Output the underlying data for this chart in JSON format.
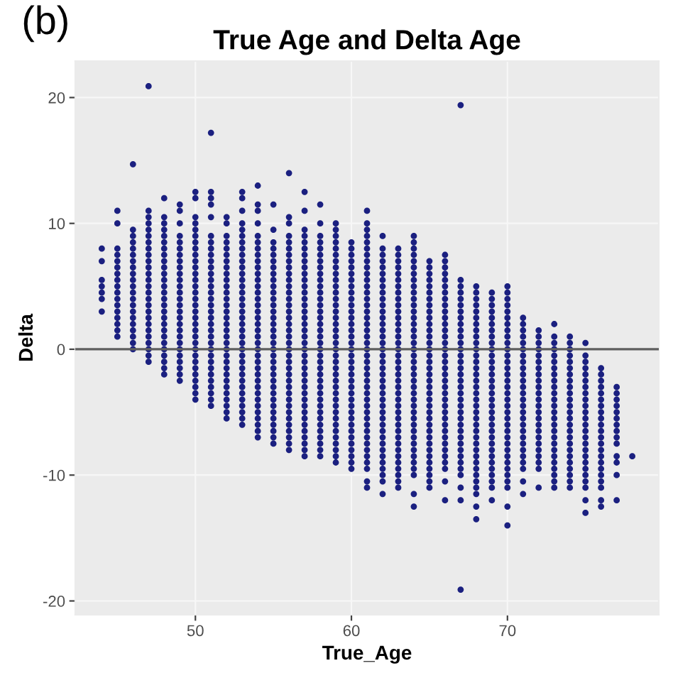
{
  "chart_data": {
    "type": "scatter",
    "title": "True Age and Delta Age",
    "xlabel": "True_Age",
    "ylabel": "Delta",
    "annotations": [
      "(b)"
    ],
    "marker": "circle",
    "grid": true,
    "xlim": [
      42.3,
      79.7
    ],
    "ylim": [
      -21.1,
      22.9
    ],
    "xticks": [
      50,
      60,
      70
    ],
    "yticks": [
      -20,
      -10,
      0,
      10,
      20
    ],
    "ref_lines": [
      {
        "axis": "y",
        "value": 0,
        "color": "#5e5e5e"
      }
    ],
    "series": [
      {
        "color": "#1b2080",
        "x": [
          44,
          44,
          44,
          44,
          44,
          44,
          44
        ],
        "values": [
          8,
          7,
          5.5,
          5,
          4.5,
          4,
          3
        ]
      },
      {
        "color": "#1b2080",
        "x": [
          45,
          45,
          45,
          45,
          45,
          45,
          45,
          45,
          45,
          45,
          45,
          45,
          45,
          45,
          45,
          45,
          45
        ],
        "values": [
          11,
          10,
          8,
          7.5,
          7,
          6.5,
          6,
          5.5,
          5,
          4.5,
          4,
          3.5,
          3,
          2.5,
          2,
          1.5,
          1
        ]
      },
      {
        "color": "#1b2080",
        "x": [
          46,
          46,
          46,
          46,
          46,
          46,
          46,
          46,
          46,
          46,
          46,
          46,
          46,
          46,
          46,
          46,
          46,
          46,
          46,
          46,
          46
        ],
        "values": [
          14.7,
          9.5,
          9,
          8.5,
          8,
          7.5,
          7,
          6.5,
          6,
          5.5,
          5,
          4.5,
          4,
          3.5,
          3,
          2.5,
          2,
          1.5,
          1,
          0.5,
          0
        ]
      },
      {
        "color": "#1b2080",
        "x": [
          47,
          47,
          47,
          47,
          47,
          47,
          47,
          47,
          47,
          47,
          47,
          47,
          47,
          47,
          47,
          47,
          47,
          47,
          47,
          47,
          47,
          47,
          47,
          47,
          47,
          47
        ],
        "values": [
          20.9,
          11,
          10.5,
          10,
          9.5,
          9,
          8.5,
          8,
          7.5,
          7,
          6.5,
          6,
          5.5,
          5,
          4.5,
          4,
          3.5,
          3,
          2.5,
          2,
          1.5,
          1,
          0.5,
          0,
          -0.5,
          -1
        ]
      },
      {
        "color": "#1b2080",
        "x": [
          48,
          48,
          48,
          48,
          48,
          48,
          48,
          48,
          48,
          48,
          48,
          48,
          48,
          48,
          48,
          48,
          48,
          48,
          48,
          48,
          48,
          48,
          48,
          48,
          48,
          48,
          48
        ],
        "values": [
          12,
          10.5,
          10,
          9.5,
          9,
          8.5,
          8,
          7.5,
          7,
          6.5,
          6,
          5.5,
          5,
          4.5,
          4,
          3.5,
          3,
          2.5,
          2,
          1.5,
          1,
          0.5,
          0,
          -0.5,
          -1,
          -1.5,
          -2
        ]
      },
      {
        "color": "#1b2080",
        "x": [
          49,
          49,
          49,
          49,
          49,
          49,
          49,
          49,
          49,
          49,
          49,
          49,
          49,
          49,
          49,
          49,
          49,
          49,
          49,
          49,
          49,
          49,
          49,
          49,
          49,
          49,
          49
        ],
        "values": [
          11.5,
          11,
          10,
          9,
          8.5,
          8,
          7.5,
          7,
          6.5,
          6,
          5.5,
          5,
          4.5,
          4,
          3.5,
          3,
          2.5,
          2,
          1.5,
          1,
          0.5,
          0,
          -0.5,
          -1,
          -1.5,
          -2,
          -2.5
        ]
      },
      {
        "color": "#1b2080",
        "x": [
          50,
          50,
          50,
          50,
          50,
          50,
          50,
          50,
          50,
          50,
          50,
          50,
          50,
          50,
          50,
          50,
          50,
          50,
          50,
          50,
          50,
          50,
          50,
          50,
          50,
          50,
          50,
          50,
          50,
          50,
          50,
          50
        ],
        "values": [
          12.5,
          12,
          10.5,
          10,
          9.5,
          9,
          8.5,
          8,
          7.5,
          7,
          6.5,
          6,
          5.5,
          5,
          4.5,
          4,
          3.5,
          3,
          2.5,
          2,
          1.5,
          1,
          0.5,
          0,
          -0.5,
          -1,
          -1.5,
          -2,
          -2.5,
          -3,
          -3.5,
          -4
        ]
      },
      {
        "color": "#1b2080",
        "x": [
          51,
          51,
          51,
          51,
          51,
          51,
          51,
          51,
          51,
          51,
          51,
          51,
          51,
          51,
          51,
          51,
          51,
          51,
          51,
          51,
          51,
          51,
          51,
          51,
          51,
          51,
          51,
          51,
          51,
          51,
          51,
          51,
          51
        ],
        "values": [
          17.2,
          12.5,
          12,
          11.5,
          10.5,
          9,
          8.5,
          8,
          7.5,
          7,
          6.5,
          6,
          5.5,
          5,
          4.5,
          4,
          3.5,
          3,
          2.5,
          2,
          1.5,
          1,
          0.5,
          0,
          -0.5,
          -1,
          -1.5,
          -2,
          -2.5,
          -3,
          -3.5,
          -4,
          -4.5
        ]
      },
      {
        "color": "#1b2080",
        "x": [
          52,
          52,
          52,
          52,
          52,
          52,
          52,
          52,
          52,
          52,
          52,
          52,
          52,
          52,
          52,
          52,
          52,
          52,
          52,
          52,
          52,
          52,
          52,
          52,
          52,
          52,
          52,
          52,
          52,
          52,
          52,
          52
        ],
        "values": [
          10.5,
          10,
          9,
          8.5,
          8,
          7.5,
          7,
          6.5,
          6,
          5.5,
          5,
          4.5,
          4,
          3.5,
          3,
          2.5,
          2,
          1.5,
          1,
          0.5,
          0,
          -0.5,
          -1,
          -1.5,
          -2,
          -2.5,
          -3,
          -3.5,
          -4,
          -4.5,
          -5,
          -5.5
        ]
      },
      {
        "color": "#1b2080",
        "x": [
          53,
          53,
          53,
          53,
          53,
          53,
          53,
          53,
          53,
          53,
          53,
          53,
          53,
          53,
          53,
          53,
          53,
          53,
          53,
          53,
          53,
          53,
          53,
          53,
          53,
          53,
          53,
          53,
          53,
          53,
          53,
          53,
          53,
          53,
          53,
          53
        ],
        "values": [
          12.5,
          12,
          11,
          10,
          9.5,
          9,
          8.5,
          8,
          7.5,
          7,
          6.5,
          6,
          5.5,
          5,
          4.5,
          4,
          3.5,
          3,
          2.5,
          2,
          1.5,
          1,
          0.5,
          0,
          -0.5,
          -1,
          -1.5,
          -2,
          -2.5,
          -3,
          -3.5,
          -4,
          -4.5,
          -5,
          -5.5,
          -6
        ]
      },
      {
        "color": "#1b2080",
        "x": [
          54,
          54,
          54,
          54,
          54,
          54,
          54,
          54,
          54,
          54,
          54,
          54,
          54,
          54,
          54,
          54,
          54,
          54,
          54,
          54,
          54,
          54,
          54,
          54,
          54,
          54,
          54,
          54,
          54,
          54,
          54,
          54,
          54,
          54,
          54,
          54,
          54
        ],
        "values": [
          13,
          11.5,
          11,
          10,
          9,
          8.5,
          8,
          7.5,
          7,
          6.5,
          6,
          5.5,
          5,
          4.5,
          4,
          3.5,
          3,
          2.5,
          2,
          1.5,
          1,
          0.5,
          0,
          -0.5,
          -1,
          -1.5,
          -2,
          -2.5,
          -3,
          -3.5,
          -4,
          -4.5,
          -5,
          -5.5,
          -6,
          -6.5,
          -7
        ]
      },
      {
        "color": "#1b2080",
        "x": [
          55,
          55,
          55,
          55,
          55,
          55,
          55,
          55,
          55,
          55,
          55,
          55,
          55,
          55,
          55,
          55,
          55,
          55,
          55,
          55,
          55,
          55,
          55,
          55,
          55,
          55,
          55,
          55,
          55,
          55,
          55,
          55,
          55,
          55,
          55
        ],
        "values": [
          11.5,
          9.5,
          8.5,
          8,
          7.5,
          7,
          6.5,
          6,
          5.5,
          5,
          4.5,
          4,
          3.5,
          3,
          2.5,
          2,
          1.5,
          1,
          0.5,
          0,
          -0.5,
          -1,
          -1.5,
          -2,
          -2.5,
          -3,
          -3.5,
          -4,
          -4.5,
          -5,
          -5.5,
          -6,
          -6.5,
          -7,
          -7.5
        ]
      },
      {
        "color": "#1b2080",
        "x": [
          56,
          56,
          56,
          56,
          56,
          56,
          56,
          56,
          56,
          56,
          56,
          56,
          56,
          56,
          56,
          56,
          56,
          56,
          56,
          56,
          56,
          56,
          56,
          56,
          56,
          56,
          56,
          56,
          56,
          56,
          56,
          56,
          56,
          56,
          56,
          56,
          56,
          56
        ],
        "values": [
          14,
          10.5,
          10,
          9,
          8.5,
          8,
          7.5,
          7,
          6.5,
          6,
          5.5,
          5,
          4.5,
          4,
          3.5,
          3,
          2.5,
          2,
          1.5,
          1,
          0.5,
          0,
          -0.5,
          -1,
          -1.5,
          -2,
          -2.5,
          -3,
          -3.5,
          -4,
          -4.5,
          -5,
          -5.5,
          -6,
          -6.5,
          -7,
          -7.5,
          -8
        ]
      },
      {
        "color": "#1b2080",
        "x": [
          57,
          57,
          57,
          57,
          57,
          57,
          57,
          57,
          57,
          57,
          57,
          57,
          57,
          57,
          57,
          57,
          57,
          57,
          57,
          57,
          57,
          57,
          57,
          57,
          57,
          57,
          57,
          57,
          57,
          57,
          57,
          57,
          57,
          57,
          57,
          57,
          57,
          57,
          57
        ],
        "values": [
          12.5,
          11,
          9.5,
          9,
          8.5,
          8,
          7.5,
          7,
          6.5,
          6,
          5.5,
          5,
          4.5,
          4,
          3.5,
          3,
          2.5,
          2,
          1.5,
          1,
          0.5,
          0,
          -0.5,
          -1,
          -1.5,
          -2,
          -2.5,
          -3,
          -3.5,
          -4,
          -4.5,
          -5,
          -5.5,
          -6,
          -6.5,
          -7,
          -7.5,
          -8,
          -8.5
        ]
      },
      {
        "color": "#1b2080",
        "x": [
          58,
          58,
          58,
          58,
          58,
          58,
          58,
          58,
          58,
          58,
          58,
          58,
          58,
          58,
          58,
          58,
          58,
          58,
          58,
          58,
          58,
          58,
          58,
          58,
          58,
          58,
          58,
          58,
          58,
          58,
          58,
          58,
          58,
          58,
          58,
          58,
          58,
          58
        ],
        "values": [
          11.5,
          10,
          9,
          8.5,
          8,
          7.5,
          7,
          6.5,
          6,
          5.5,
          5,
          4.5,
          4,
          3.5,
          3,
          2.5,
          2,
          1.5,
          1,
          0.5,
          0,
          -0.5,
          -1,
          -1.5,
          -2,
          -2.5,
          -3,
          -3.5,
          -4,
          -4.5,
          -5,
          -5.5,
          -6,
          -6.5,
          -7,
          -7.5,
          -8,
          -8.5
        ]
      },
      {
        "color": "#1b2080",
        "x": [
          59,
          59,
          59,
          59,
          59,
          59,
          59,
          59,
          59,
          59,
          59,
          59,
          59,
          59,
          59,
          59,
          59,
          59,
          59,
          59,
          59,
          59,
          59,
          59,
          59,
          59,
          59,
          59,
          59,
          59,
          59,
          59,
          59,
          59,
          59,
          59,
          59,
          59,
          59
        ],
        "values": [
          10,
          9.5,
          9,
          8.5,
          8,
          7.5,
          7,
          6.5,
          6,
          5.5,
          5,
          4.5,
          4,
          3.5,
          3,
          2.5,
          2,
          1.5,
          1,
          0.5,
          0,
          -0.5,
          -1,
          -1.5,
          -2,
          -2.5,
          -3,
          -3.5,
          -4,
          -4.5,
          -5,
          -5.5,
          -6,
          -6.5,
          -7,
          -7.5,
          -8,
          -8.5,
          -9
        ]
      },
      {
        "color": "#1b2080",
        "x": [
          60,
          60,
          60,
          60,
          60,
          60,
          60,
          60,
          60,
          60,
          60,
          60,
          60,
          60,
          60,
          60,
          60,
          60,
          60,
          60,
          60,
          60,
          60,
          60,
          60,
          60,
          60,
          60,
          60,
          60,
          60,
          60,
          60,
          60,
          60,
          60,
          60
        ],
        "values": [
          8.5,
          8,
          7.5,
          7,
          6.5,
          6,
          5.5,
          5,
          4.5,
          4,
          3.5,
          3,
          2.5,
          2,
          1.5,
          1,
          0.5,
          0,
          -0.5,
          -1,
          -1.5,
          -2,
          -2.5,
          -3,
          -3.5,
          -4,
          -4.5,
          -5,
          -5.5,
          -6,
          -6.5,
          -7,
          -7.5,
          -8,
          -8.5,
          -9,
          -9.5
        ]
      },
      {
        "color": "#1b2080",
        "x": [
          61,
          61,
          61,
          61,
          61,
          61,
          61,
          61,
          61,
          61,
          61,
          61,
          61,
          61,
          61,
          61,
          61,
          61,
          61,
          61,
          61,
          61,
          61,
          61,
          61,
          61,
          61,
          61,
          61,
          61,
          61,
          61,
          61,
          61,
          61,
          61,
          61,
          61,
          61,
          61,
          61,
          61,
          61
        ],
        "values": [
          11,
          10,
          9.5,
          9,
          8.5,
          8,
          7.5,
          7,
          6.5,
          6,
          5.5,
          5,
          4.5,
          4,
          3.5,
          3,
          2.5,
          2,
          1.5,
          1,
          0.5,
          0,
          -0.5,
          -1,
          -1.5,
          -2,
          -2.5,
          -3,
          -3.5,
          -4,
          -4.5,
          -5,
          -5.5,
          -6,
          -6.5,
          -7,
          -7.5,
          -8,
          -8.5,
          -9,
          -9.5,
          -10.5,
          -11
        ]
      },
      {
        "color": "#1b2080",
        "x": [
          62,
          62,
          62,
          62,
          62,
          62,
          62,
          62,
          62,
          62,
          62,
          62,
          62,
          62,
          62,
          62,
          62,
          62,
          62,
          62,
          62,
          62,
          62,
          62,
          62,
          62,
          62,
          62,
          62,
          62,
          62,
          62,
          62,
          62,
          62,
          62,
          62,
          62,
          62,
          62
        ],
        "values": [
          9,
          8,
          7.5,
          7,
          6.5,
          6,
          5.5,
          5,
          4.5,
          4,
          3.5,
          3,
          2.5,
          2,
          1.5,
          1,
          0.5,
          0,
          -0.5,
          -1,
          -1.5,
          -2,
          -2.5,
          -3,
          -3.5,
          -4,
          -4.5,
          -5,
          -5.5,
          -6,
          -6.5,
          -7,
          -7.5,
          -8,
          -8.5,
          -9,
          -9.5,
          -10,
          -10.5,
          -11.5
        ]
      },
      {
        "color": "#1b2080",
        "x": [
          63,
          63,
          63,
          63,
          63,
          63,
          63,
          63,
          63,
          63,
          63,
          63,
          63,
          63,
          63,
          63,
          63,
          63,
          63,
          63,
          63,
          63,
          63,
          63,
          63,
          63,
          63,
          63,
          63,
          63,
          63,
          63,
          63,
          63,
          63,
          63,
          63,
          63,
          63
        ],
        "values": [
          8,
          7.5,
          7,
          6.5,
          6,
          5.5,
          5,
          4.5,
          4,
          3.5,
          3,
          2.5,
          2,
          1.5,
          1,
          0.5,
          0,
          -0.5,
          -1,
          -1.5,
          -2,
          -2.5,
          -3,
          -3.5,
          -4,
          -4.5,
          -5,
          -5.5,
          -6,
          -6.5,
          -7,
          -7.5,
          -8,
          -8.5,
          -9,
          -9.5,
          -10,
          -10.5,
          -11
        ]
      },
      {
        "color": "#1b2080",
        "x": [
          64,
          64,
          64,
          64,
          64,
          64,
          64,
          64,
          64,
          64,
          64,
          64,
          64,
          64,
          64,
          64,
          64,
          64,
          64,
          64,
          64,
          64,
          64,
          64,
          64,
          64,
          64,
          64,
          64,
          64,
          64,
          64,
          64,
          64,
          64,
          64,
          64,
          64,
          64,
          64,
          64
        ],
        "values": [
          9,
          8.5,
          8,
          7.5,
          7,
          6.5,
          6,
          5.5,
          5,
          4.5,
          4,
          3.5,
          3,
          2.5,
          2,
          1.5,
          1,
          0.5,
          0,
          -0.5,
          -1,
          -1.5,
          -2,
          -2.5,
          -3,
          -3.5,
          -4,
          -4.5,
          -5,
          -5.5,
          -6,
          -6.5,
          -7,
          -7.5,
          -8,
          -8.5,
          -9,
          -9.5,
          -10,
          -11.5,
          -12.5
        ]
      },
      {
        "color": "#1b2080",
        "x": [
          65,
          65,
          65,
          65,
          65,
          65,
          65,
          65,
          65,
          65,
          65,
          65,
          65,
          65,
          65,
          65,
          65,
          65,
          65,
          65,
          65,
          65,
          65,
          65,
          65,
          65,
          65,
          65,
          65,
          65,
          65,
          65,
          65,
          65,
          65,
          65,
          65
        ],
        "values": [
          7,
          6.5,
          6,
          5.5,
          5,
          4.5,
          4,
          3.5,
          3,
          2.5,
          2,
          1.5,
          1,
          0.5,
          0,
          -0.5,
          -1,
          -1.5,
          -2,
          -2.5,
          -3,
          -3.5,
          -4,
          -4.5,
          -5,
          -5.5,
          -6,
          -6.5,
          -7,
          -7.5,
          -8,
          -8.5,
          -9,
          -9.5,
          -10,
          -10.5,
          -11
        ]
      },
      {
        "color": "#1b2080",
        "x": [
          66,
          66,
          66,
          66,
          66,
          66,
          66,
          66,
          66,
          66,
          66,
          66,
          66,
          66,
          66,
          66,
          66,
          66,
          66,
          66,
          66,
          66,
          66,
          66,
          66,
          66,
          66,
          66,
          66,
          66,
          66,
          66,
          66,
          66,
          66,
          66,
          66
        ],
        "values": [
          7.5,
          7,
          6.5,
          6,
          5.5,
          5,
          4.5,
          4,
          3.5,
          3,
          2.5,
          2,
          1.5,
          1,
          0.5,
          0,
          -0.5,
          -1,
          -1.5,
          -2,
          -2.5,
          -3,
          -3.5,
          -4,
          -4.5,
          -5,
          -5.5,
          -6,
          -6.5,
          -7,
          -7.5,
          -8,
          -8.5,
          -9,
          -9.5,
          -10.5,
          -12
        ]
      },
      {
        "color": "#1b2080",
        "x": [
          67,
          67,
          67,
          67,
          67,
          67,
          67,
          67,
          67,
          67,
          67,
          67,
          67,
          67,
          67,
          67,
          67,
          67,
          67,
          67,
          67,
          67,
          67,
          67,
          67,
          67,
          67,
          67,
          67,
          67,
          67,
          67,
          67,
          67,
          67,
          67
        ],
        "values": [
          19.4,
          5.5,
          5,
          4.5,
          4,
          3.5,
          3,
          2.5,
          2,
          1.5,
          1,
          0.5,
          0,
          -0.5,
          -1,
          -1.5,
          -2,
          -2.5,
          -3,
          -3.5,
          -4,
          -4.5,
          -5,
          -5.5,
          -6,
          -6.5,
          -7,
          -7.5,
          -8,
          -8.5,
          -9,
          -9.5,
          -10,
          -11,
          -12,
          -19.1
        ]
      },
      {
        "color": "#1b2080",
        "x": [
          68,
          68,
          68,
          68,
          68,
          68,
          68,
          68,
          68,
          68,
          68,
          68,
          68,
          68,
          68,
          68,
          68,
          68,
          68,
          68,
          68,
          68,
          68,
          68,
          68,
          68,
          68,
          68,
          68,
          68,
          68,
          68,
          68,
          68,
          68,
          68
        ],
        "values": [
          5,
          4.5,
          4,
          3.5,
          3,
          2.5,
          2,
          1.5,
          1,
          0.5,
          0,
          -0.5,
          -1,
          -1.5,
          -2,
          -2.5,
          -3,
          -3.5,
          -4,
          -4.5,
          -5,
          -5.5,
          -6,
          -6.5,
          -7,
          -7.5,
          -8,
          -8.5,
          -9,
          -9.5,
          -10,
          -10.5,
          -11,
          -11.5,
          -12.5,
          -13.5
        ]
      },
      {
        "color": "#1b2080",
        "x": [
          69,
          69,
          69,
          69,
          69,
          69,
          69,
          69,
          69,
          69,
          69,
          69,
          69,
          69,
          69,
          69,
          69,
          69,
          69,
          69,
          69,
          69,
          69,
          69,
          69,
          69,
          69,
          69,
          69,
          69,
          69,
          69,
          69
        ],
        "values": [
          4.5,
          4,
          3.5,
          3,
          2.5,
          2,
          1.5,
          1,
          0.5,
          0,
          -0.5,
          -1,
          -1.5,
          -2,
          -2.5,
          -3,
          -3.5,
          -4,
          -4.5,
          -5,
          -5.5,
          -6,
          -6.5,
          -7,
          -7.5,
          -8,
          -8.5,
          -9,
          -9.5,
          -10,
          -10.5,
          -11,
          -12
        ]
      },
      {
        "color": "#1b2080",
        "x": [
          70,
          70,
          70,
          70,
          70,
          70,
          70,
          70,
          70,
          70,
          70,
          70,
          70,
          70,
          70,
          70,
          70,
          70,
          70,
          70,
          70,
          70,
          70,
          70,
          70,
          70,
          70,
          70,
          70,
          70,
          70,
          70,
          70,
          70,
          70
        ],
        "values": [
          5,
          4.5,
          4,
          3.5,
          3,
          2.5,
          2,
          1.5,
          1,
          0.5,
          0,
          -0.5,
          -1,
          -1.5,
          -2,
          -2.5,
          -3,
          -3.5,
          -4,
          -4.5,
          -5,
          -5.5,
          -6,
          -6.5,
          -7,
          -7.5,
          -8,
          -8.5,
          -9,
          -9.5,
          -10,
          -10.5,
          -11,
          -12.5,
          -14
        ]
      },
      {
        "color": "#1b2080",
        "x": [
          71,
          71,
          71,
          71,
          71,
          71,
          71,
          71,
          71,
          71,
          71,
          71,
          71,
          71,
          71,
          71,
          71,
          71,
          71,
          71,
          71,
          71,
          71,
          71,
          71,
          71,
          71
        ],
        "values": [
          2.5,
          2,
          1.5,
          1,
          0.5,
          0,
          -0.5,
          -1,
          -1.5,
          -2,
          -2.5,
          -3,
          -3.5,
          -4,
          -4.5,
          -5,
          -5.5,
          -6,
          -6.5,
          -7,
          -7.5,
          -8,
          -8.5,
          -9,
          -9.5,
          -10.5,
          -11.5
        ]
      },
      {
        "color": "#1b2080",
        "x": [
          72,
          72,
          72,
          72,
          72,
          72,
          72,
          72,
          72,
          72,
          72,
          72,
          72,
          72,
          72,
          72,
          72,
          72,
          72,
          72,
          72,
          72,
          72,
          72
        ],
        "values": [
          1.5,
          1,
          0.5,
          0,
          -0.5,
          -1,
          -1.5,
          -2,
          -2.5,
          -3,
          -3.5,
          -4,
          -4.5,
          -5,
          -5.5,
          -6,
          -6.5,
          -7,
          -7.5,
          -8,
          -8.5,
          -9,
          -9.5,
          -11
        ]
      },
      {
        "color": "#1b2080",
        "x": [
          73,
          73,
          73,
          73,
          73,
          73,
          73,
          73,
          73,
          73,
          73,
          73,
          73,
          73,
          73,
          73,
          73,
          73,
          73,
          73,
          73,
          73,
          73,
          73,
          73,
          73
        ],
        "values": [
          2,
          1,
          0.5,
          0,
          -0.5,
          -1,
          -1.5,
          -2,
          -2.5,
          -3,
          -3.5,
          -4,
          -4.5,
          -5,
          -5.5,
          -6,
          -6.5,
          -7,
          -7.5,
          -8,
          -8.5,
          -9,
          -9.5,
          -10,
          -10.5,
          -11
        ]
      },
      {
        "color": "#1b2080",
        "x": [
          74,
          74,
          74,
          74,
          74,
          74,
          74,
          74,
          74,
          74,
          74,
          74,
          74,
          74,
          74,
          74,
          74,
          74,
          74,
          74,
          74,
          74,
          74,
          74,
          74
        ],
        "values": [
          1,
          0.5,
          0,
          -0.5,
          -1,
          -1.5,
          -2,
          -2.5,
          -3,
          -3.5,
          -4,
          -4.5,
          -5,
          -5.5,
          -6,
          -6.5,
          -7,
          -7.5,
          -8,
          -8.5,
          -9,
          -9.5,
          -10,
          -10.5,
          -11
        ]
      },
      {
        "color": "#1b2080",
        "x": [
          75,
          75,
          75,
          75,
          75,
          75,
          75,
          75,
          75,
          75,
          75,
          75,
          75,
          75,
          75,
          75,
          75,
          75,
          75,
          75,
          75,
          75,
          75,
          75,
          75
        ],
        "values": [
          0.5,
          -0.5,
          -1,
          -1.5,
          -2,
          -2.5,
          -3,
          -3.5,
          -4,
          -4.5,
          -5,
          -5.5,
          -6,
          -6.5,
          -7,
          -7.5,
          -8,
          -8.5,
          -9,
          -9.5,
          -10,
          -10.5,
          -11,
          -12,
          -13
        ]
      },
      {
        "color": "#1b2080",
        "x": [
          76,
          76,
          76,
          76,
          76,
          76,
          76,
          76,
          76,
          76,
          76,
          76,
          76,
          76,
          76,
          76,
          76,
          76,
          76,
          76,
          76,
          76
        ],
        "values": [
          -1.5,
          -2,
          -2.5,
          -3,
          -3.5,
          -4,
          -4.5,
          -5,
          -5.5,
          -6,
          -6.5,
          -7,
          -7.5,
          -8,
          -8.5,
          -9,
          -9.5,
          -10,
          -10.5,
          -11,
          -12,
          -12.5
        ]
      },
      {
        "color": "#1b2080",
        "x": [
          77,
          77,
          77,
          77,
          77,
          77,
          77,
          77,
          77,
          77,
          77,
          77,
          77,
          77
        ],
        "values": [
          -3,
          -3.5,
          -4,
          -4.5,
          -5,
          -5.5,
          -6,
          -6.5,
          -7,
          -7.5,
          -8.5,
          -9,
          -10,
          -12
        ]
      },
      {
        "color": "#1b2080",
        "x": [
          78
        ],
        "values": [
          -8.5
        ]
      }
    ]
  }
}
